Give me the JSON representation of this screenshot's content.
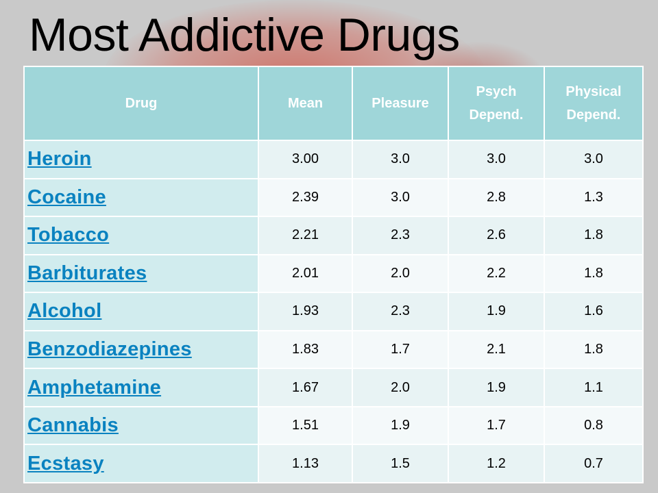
{
  "title": "Most Addictive Drugs",
  "table": {
    "headers": {
      "drug": "Drug",
      "mean": "Mean",
      "pleasure": "Pleasure",
      "psych_line1": "Psych",
      "psych_line2": "Depend.",
      "physical_line1": "Physical",
      "physical_line2": "Depend."
    },
    "rows": [
      {
        "drug": "Heroin",
        "mean": "3.00",
        "pleasure": "3.0",
        "psych": "3.0",
        "physical": "3.0"
      },
      {
        "drug": "Cocaine",
        "mean": "2.39",
        "pleasure": "3.0",
        "psych": "2.8",
        "physical": "1.3"
      },
      {
        "drug": "Tobacco",
        "mean": "2.21",
        "pleasure": "2.3",
        "psych": "2.6",
        "physical": "1.8"
      },
      {
        "drug": "Barbiturates",
        "mean": "2.01",
        "pleasure": "2.0",
        "psych": "2.2",
        "physical": "1.8"
      },
      {
        "drug": "Alcohol",
        "mean": "1.93",
        "pleasure": "2.3",
        "psych": "1.9",
        "physical": "1.6"
      },
      {
        "drug": "Benzodiazepines",
        "mean": "1.83",
        "pleasure": "1.7",
        "psych": "2.1",
        "physical": "1.8"
      },
      {
        "drug": "Amphetamine",
        "mean": "1.67",
        "pleasure": "2.0",
        "psych": "1.9",
        "physical": "1.1"
      },
      {
        "drug": "Cannabis",
        "mean": "1.51",
        "pleasure": "1.9",
        "psych": "1.7",
        "physical": "0.8"
      },
      {
        "drug": "Ecstasy",
        "mean": "1.13",
        "pleasure": "1.5",
        "psych": "1.2",
        "physical": "0.7"
      }
    ]
  },
  "colors": {
    "header_bg": "#9fd6d9",
    "drug_col_bg": "#d1ecee",
    "link": "#0a82c0"
  }
}
